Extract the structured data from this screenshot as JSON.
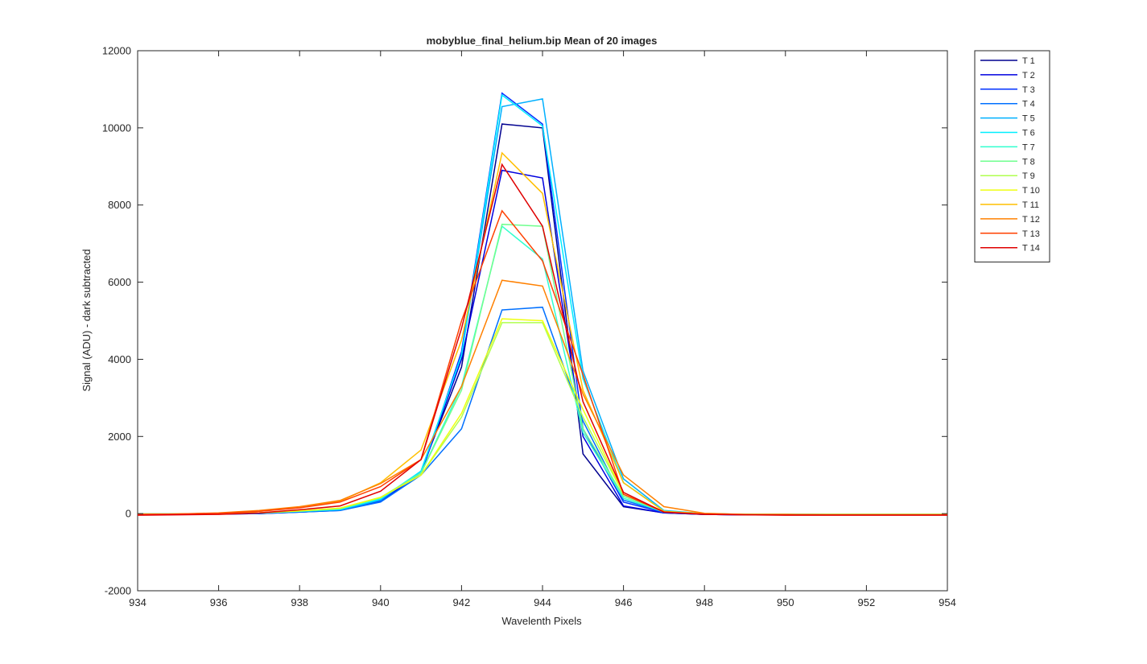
{
  "chart_data": {
    "type": "line",
    "title": "mobyblue_final_helium.bip  Mean of 20 images",
    "xlabel": "Wavelenth Pixels",
    "ylabel": "Signal (ADU) - dark subtracted",
    "xlim": [
      934,
      954
    ],
    "ylim": [
      -2000,
      12000
    ],
    "xticks": [
      934,
      936,
      938,
      940,
      942,
      944,
      946,
      948,
      950,
      952,
      954
    ],
    "yticks": [
      -2000,
      0,
      2000,
      4000,
      6000,
      8000,
      10000,
      12000
    ],
    "grid": false,
    "legend_position": "outside-top-right",
    "x": [
      934,
      935,
      936,
      937,
      938,
      939,
      940,
      941,
      942,
      943,
      944,
      945,
      946,
      947,
      948,
      949,
      950,
      951,
      952,
      953,
      954
    ],
    "series": [
      {
        "name": "T 1",
        "color": "#00008f",
        "values": [
          -20,
          -20,
          -10,
          0,
          50,
          100,
          350,
          1100,
          3800,
          10100,
          10000,
          1550,
          180,
          20,
          -20,
          -30,
          -30,
          -30,
          -30,
          -30,
          -30
        ]
      },
      {
        "name": "T 2",
        "color": "#0000df",
        "values": [
          -20,
          -20,
          -10,
          0,
          40,
          90,
          340,
          1050,
          4000,
          8900,
          8700,
          2000,
          200,
          20,
          -20,
          -30,
          -30,
          -30,
          -30,
          -30,
          -30
        ]
      },
      {
        "name": "T 3",
        "color": "#0030ff",
        "values": [
          -20,
          -20,
          -10,
          0,
          40,
          80,
          320,
          1000,
          4200,
          10900,
          10100,
          2200,
          300,
          30,
          -20,
          -30,
          -30,
          -30,
          -30,
          -30,
          -30
        ]
      },
      {
        "name": "T 4",
        "color": "#0070ff",
        "values": [
          -10,
          -10,
          0,
          10,
          40,
          80,
          300,
          1000,
          2200,
          5280,
          5350,
          2400,
          350,
          40,
          -10,
          -20,
          -20,
          -20,
          -20,
          -20,
          -20
        ]
      },
      {
        "name": "T 5",
        "color": "#00b0ff",
        "values": [
          -10,
          -10,
          0,
          20,
          60,
          100,
          350,
          1100,
          4100,
          10550,
          10750,
          3700,
          900,
          80,
          0,
          -20,
          -20,
          -20,
          -20,
          -20,
          -20
        ]
      },
      {
        "name": "T 6",
        "color": "#00efff",
        "values": [
          -10,
          -10,
          0,
          20,
          60,
          110,
          380,
          1100,
          4100,
          10850,
          10050,
          3500,
          800,
          70,
          0,
          -20,
          -20,
          -20,
          -20,
          -20,
          -20
        ]
      },
      {
        "name": "T 7",
        "color": "#30ffcf",
        "values": [
          -10,
          -10,
          0,
          20,
          60,
          120,
          400,
          1050,
          3300,
          7450,
          6600,
          2100,
          400,
          40,
          -10,
          -20,
          -20,
          -20,
          -20,
          -20,
          -20
        ]
      },
      {
        "name": "T 8",
        "color": "#70ff8f",
        "values": [
          -10,
          -10,
          0,
          20,
          70,
          130,
          420,
          1050,
          3200,
          7500,
          7450,
          2200,
          450,
          50,
          -10,
          -20,
          -20,
          -20,
          -20,
          -20,
          -20
        ]
      },
      {
        "name": "T 9",
        "color": "#b0ff4f",
        "values": [
          -10,
          -10,
          0,
          20,
          70,
          140,
          420,
          1000,
          2500,
          4950,
          4950,
          2500,
          500,
          50,
          -10,
          -20,
          -20,
          -20,
          -20,
          -20,
          -20
        ]
      },
      {
        "name": "T 10",
        "color": "#efff10",
        "values": [
          -10,
          -10,
          0,
          20,
          70,
          140,
          420,
          1000,
          2600,
          5050,
          5000,
          2700,
          500,
          50,
          -10,
          -20,
          -20,
          -20,
          -20,
          -20,
          -20
        ]
      },
      {
        "name": "T 11",
        "color": "#ffbf00",
        "values": [
          -20,
          -10,
          10,
          60,
          160,
          320,
          800,
          1650,
          4500,
          9350,
          8300,
          3200,
          800,
          60,
          0,
          -20,
          -20,
          -30,
          -30,
          -30,
          -30
        ]
      },
      {
        "name": "T 12",
        "color": "#ff8000",
        "values": [
          -20,
          -10,
          20,
          80,
          180,
          340,
          780,
          1400,
          3300,
          6050,
          5900,
          3100,
          1000,
          180,
          10,
          -20,
          -20,
          -30,
          -30,
          -30,
          -30
        ]
      },
      {
        "name": "T 13",
        "color": "#ff4000",
        "values": [
          -20,
          -10,
          10,
          60,
          150,
          300,
          700,
          1400,
          5000,
          7850,
          6550,
          3600,
          500,
          40,
          -10,
          -30,
          -30,
          -30,
          -30,
          -30,
          -30
        ]
      },
      {
        "name": "T 14",
        "color": "#df0000",
        "values": [
          -40,
          -30,
          -20,
          20,
          100,
          200,
          580,
          1400,
          4800,
          9050,
          7450,
          2900,
          550,
          40,
          -20,
          -30,
          -40,
          -40,
          -40,
          -40,
          -40
        ]
      }
    ]
  }
}
